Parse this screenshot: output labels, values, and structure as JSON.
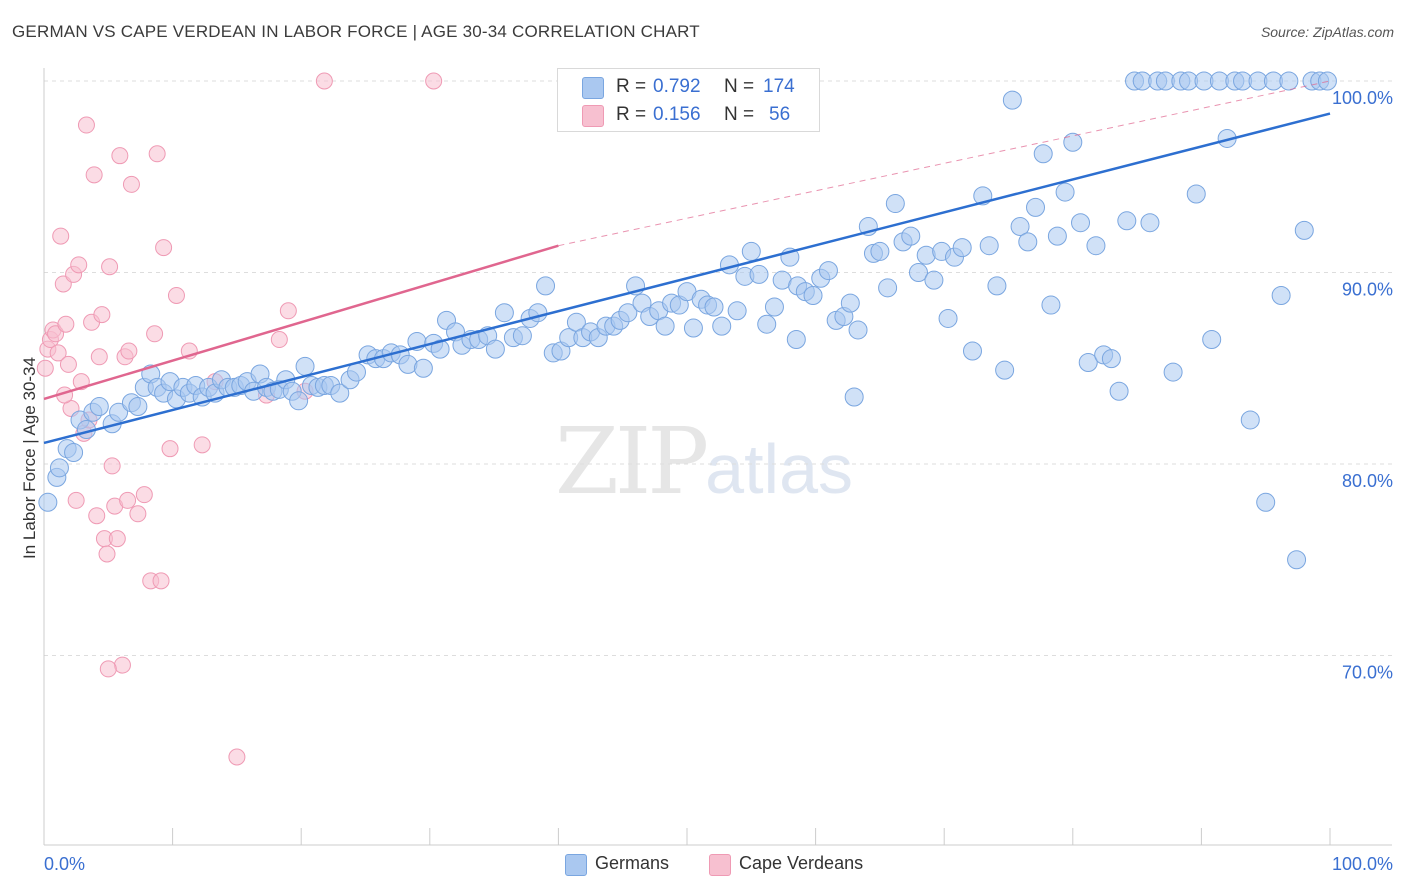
{
  "title": "GERMAN VS CAPE VERDEAN IN LABOR FORCE | AGE 30-34 CORRELATION CHART",
  "source": "Source: ZipAtlas.com",
  "watermark": {
    "zip": "ZIP",
    "atlas": "atlas"
  },
  "legend": {
    "r_label": "R =",
    "n_label": "N =",
    "germans": {
      "r": "0.792",
      "n": "174"
    },
    "cape": {
      "r": "0.156",
      "n": "56"
    }
  },
  "colors": {
    "germans_fill": "#aac8f0",
    "germans_stroke": "#7aa6e0",
    "germans_line": "#2d6fd0",
    "cape_fill": "#f7c0d0",
    "cape_stroke": "#ef9ab4",
    "cape_line": "#e0668f",
    "axis_label": "#3a6fd1",
    "grid": "#dddddd"
  },
  "chart_data": {
    "type": "scatter",
    "title": "GERMAN VS CAPE VERDEAN IN LABOR FORCE | AGE 30-34 CORRELATION CHART",
    "xlabel": "",
    "ylabel": "In Labor Force | Age 30-34",
    "xlim": [
      0,
      100
    ],
    "ylim": [
      60,
      103
    ],
    "x_tick_labels": [
      "0.0%",
      "100.0%"
    ],
    "y_ticks": [
      100,
      90,
      80,
      70
    ],
    "y_tick_labels": [
      "100.0%",
      "90.0%",
      "80.0%",
      "70.0%"
    ],
    "grid": true,
    "legend_position": "top-center",
    "series": [
      {
        "name": "Germans",
        "r": 0.792,
        "n": 174,
        "trend": {
          "x": [
            0,
            100
          ],
          "y": [
            81.1,
            98.3
          ]
        },
        "points": [
          [
            0.3,
            78
          ],
          [
            1.0,
            79.3
          ],
          [
            1.2,
            79.8
          ],
          [
            1.8,
            80.8
          ],
          [
            2.3,
            80.6
          ],
          [
            2.8,
            82.3
          ],
          [
            3.3,
            81.8
          ],
          [
            3.8,
            82.7
          ],
          [
            4.3,
            83.0
          ],
          [
            5.3,
            82.1
          ],
          [
            5.8,
            82.7
          ],
          [
            6.8,
            83.2
          ],
          [
            7.3,
            83.0
          ],
          [
            7.8,
            84.0
          ],
          [
            8.3,
            84.7
          ],
          [
            8.8,
            84.0
          ],
          [
            9.3,
            83.7
          ],
          [
            9.8,
            84.3
          ],
          [
            10.3,
            83.4
          ],
          [
            10.8,
            84.0
          ],
          [
            11.3,
            83.7
          ],
          [
            11.8,
            84.1
          ],
          [
            12.3,
            83.5
          ],
          [
            12.8,
            84.0
          ],
          [
            13.3,
            83.7
          ],
          [
            13.8,
            84.4
          ],
          [
            14.3,
            84.0
          ],
          [
            14.8,
            84.0
          ],
          [
            15.3,
            84.1
          ],
          [
            15.8,
            84.3
          ],
          [
            16.3,
            83.8
          ],
          [
            16.8,
            84.7
          ],
          [
            17.3,
            84.0
          ],
          [
            17.8,
            83.8
          ],
          [
            18.3,
            83.9
          ],
          [
            18.8,
            84.4
          ],
          [
            19.3,
            83.8
          ],
          [
            19.8,
            83.3
          ],
          [
            20.3,
            85.1
          ],
          [
            20.8,
            84.1
          ],
          [
            21.3,
            84.0
          ],
          [
            21.8,
            84.1
          ],
          [
            22.3,
            84.1
          ],
          [
            23.0,
            83.7
          ],
          [
            23.8,
            84.4
          ],
          [
            24.3,
            84.8
          ],
          [
            25.2,
            85.7
          ],
          [
            25.8,
            85.5
          ],
          [
            26.4,
            85.5
          ],
          [
            27.0,
            85.8
          ],
          [
            27.7,
            85.7
          ],
          [
            28.3,
            85.2
          ],
          [
            29.0,
            86.4
          ],
          [
            29.5,
            85.0
          ],
          [
            30.3,
            86.3
          ],
          [
            30.8,
            86.0
          ],
          [
            31.3,
            87.5
          ],
          [
            32.0,
            86.9
          ],
          [
            32.5,
            86.2
          ],
          [
            33.2,
            86.5
          ],
          [
            33.8,
            86.5
          ],
          [
            34.5,
            86.7
          ],
          [
            35.1,
            86.0
          ],
          [
            35.8,
            87.9
          ],
          [
            36.5,
            86.6
          ],
          [
            37.2,
            86.7
          ],
          [
            37.8,
            87.6
          ],
          [
            38.4,
            87.9
          ],
          [
            39.0,
            89.3
          ],
          [
            39.6,
            85.8
          ],
          [
            40.2,
            85.9
          ],
          [
            40.8,
            86.6
          ],
          [
            41.4,
            87.4
          ],
          [
            41.9,
            86.6
          ],
          [
            42.5,
            86.9
          ],
          [
            43.1,
            86.6
          ],
          [
            43.7,
            87.2
          ],
          [
            44.3,
            87.2
          ],
          [
            44.8,
            87.5
          ],
          [
            45.4,
            87.9
          ],
          [
            46.0,
            89.3
          ],
          [
            46.5,
            88.4
          ],
          [
            47.1,
            87.7
          ],
          [
            47.8,
            88.0
          ],
          [
            48.3,
            87.2
          ],
          [
            48.8,
            88.4
          ],
          [
            49.4,
            88.3
          ],
          [
            50.0,
            89.0
          ],
          [
            50.5,
            87.1
          ],
          [
            51.1,
            88.6
          ],
          [
            51.6,
            88.3
          ],
          [
            52.1,
            88.2
          ],
          [
            52.7,
            87.2
          ],
          [
            53.3,
            90.4
          ],
          [
            53.9,
            88.0
          ],
          [
            54.5,
            89.8
          ],
          [
            55.0,
            91.1
          ],
          [
            55.6,
            89.9
          ],
          [
            56.2,
            87.3
          ],
          [
            56.8,
            88.2
          ],
          [
            57.4,
            89.6
          ],
          [
            58.0,
            90.8
          ],
          [
            58.6,
            89.3
          ],
          [
            59.2,
            89.0
          ],
          [
            59.8,
            88.8
          ],
          [
            60.4,
            89.7
          ],
          [
            61.0,
            90.1
          ],
          [
            61.6,
            87.5
          ],
          [
            62.2,
            87.7
          ],
          [
            62.7,
            88.4
          ],
          [
            63.3,
            87.0
          ],
          [
            64.1,
            92.4
          ],
          [
            64.5,
            91.0
          ],
          [
            65.0,
            91.1
          ],
          [
            65.6,
            89.2
          ],
          [
            66.2,
            93.6
          ],
          [
            66.8,
            91.6
          ],
          [
            67.4,
            91.9
          ],
          [
            68.0,
            90.0
          ],
          [
            68.6,
            90.9
          ],
          [
            69.2,
            89.6
          ],
          [
            69.8,
            91.1
          ],
          [
            70.3,
            87.6
          ],
          [
            70.8,
            90.8
          ],
          [
            71.4,
            91.3
          ],
          [
            72.2,
            85.9
          ],
          [
            73.0,
            94.0
          ],
          [
            73.5,
            91.4
          ],
          [
            74.1,
            89.3
          ],
          [
            74.7,
            84.9
          ],
          [
            75.3,
            99.0
          ],
          [
            75.9,
            92.4
          ],
          [
            76.5,
            91.6
          ],
          [
            77.1,
            93.4
          ],
          [
            77.7,
            96.2
          ],
          [
            78.3,
            88.3
          ],
          [
            78.8,
            91.9
          ],
          [
            79.4,
            94.2
          ],
          [
            80.0,
            96.8
          ],
          [
            80.6,
            92.6
          ],
          [
            81.2,
            85.3
          ],
          [
            81.8,
            91.4
          ],
          [
            82.4,
            85.7
          ],
          [
            83.0,
            85.5
          ],
          [
            83.6,
            83.8
          ],
          [
            84.2,
            92.7
          ],
          [
            84.8,
            100
          ],
          [
            85.4,
            100
          ],
          [
            86.0,
            92.6
          ],
          [
            86.6,
            100
          ],
          [
            87.2,
            100
          ],
          [
            87.8,
            84.8
          ],
          [
            88.4,
            100
          ],
          [
            89.0,
            100
          ],
          [
            89.6,
            94.1
          ],
          [
            90.2,
            100
          ],
          [
            90.8,
            86.5
          ],
          [
            91.4,
            100
          ],
          [
            92.0,
            97.0
          ],
          [
            92.6,
            100
          ],
          [
            93.2,
            100
          ],
          [
            93.8,
            82.3
          ],
          [
            94.4,
            100
          ],
          [
            95.0,
            78.0
          ],
          [
            95.6,
            100
          ],
          [
            96.2,
            88.8
          ],
          [
            96.8,
            100
          ],
          [
            97.4,
            75.0
          ],
          [
            98.0,
            92.2
          ],
          [
            98.6,
            100
          ],
          [
            99.2,
            100
          ],
          [
            99.8,
            100
          ],
          [
            63.0,
            83.5
          ],
          [
            58.5,
            86.5
          ]
        ]
      },
      {
        "name": "Cape Verdeans",
        "r": 0.156,
        "n": 56,
        "trend": {
          "x": [
            0,
            40
          ],
          "y": [
            83.4,
            91.4
          ]
        },
        "trend_extension": {
          "x": [
            40,
            100
          ],
          "y": [
            91.4,
            100.0
          ]
        },
        "points": [
          [
            0.1,
            85.0
          ],
          [
            0.3,
            86.0
          ],
          [
            0.5,
            86.5
          ],
          [
            0.7,
            87.0
          ],
          [
            0.9,
            86.8
          ],
          [
            1.1,
            85.8
          ],
          [
            1.3,
            91.9
          ],
          [
            1.5,
            89.4
          ],
          [
            1.7,
            87.3
          ],
          [
            1.9,
            85.2
          ],
          [
            2.1,
            82.9
          ],
          [
            2.3,
            89.9
          ],
          [
            2.5,
            78.1
          ],
          [
            2.7,
            90.4
          ],
          [
            2.9,
            84.3
          ],
          [
            3.1,
            81.6
          ],
          [
            3.3,
            97.7
          ],
          [
            3.5,
            82.3
          ],
          [
            3.7,
            87.4
          ],
          [
            3.9,
            95.1
          ],
          [
            4.1,
            77.3
          ],
          [
            4.3,
            85.6
          ],
          [
            4.5,
            87.8
          ],
          [
            4.7,
            76.1
          ],
          [
            4.9,
            75.3
          ],
          [
            5.1,
            90.3
          ],
          [
            5.3,
            79.9
          ],
          [
            5.5,
            77.8
          ],
          [
            5.7,
            76.1
          ],
          [
            5.9,
            96.1
          ],
          [
            6.1,
            69.5
          ],
          [
            6.3,
            85.6
          ],
          [
            6.6,
            85.9
          ],
          [
            6.8,
            94.6
          ],
          [
            7.3,
            77.4
          ],
          [
            7.8,
            78.4
          ],
          [
            8.3,
            73.9
          ],
          [
            8.6,
            86.8
          ],
          [
            8.8,
            96.2
          ],
          [
            9.1,
            73.9
          ],
          [
            9.3,
            91.3
          ],
          [
            9.8,
            80.8
          ],
          [
            10.3,
            88.8
          ],
          [
            11.3,
            85.9
          ],
          [
            12.3,
            81.0
          ],
          [
            13.3,
            84.3
          ],
          [
            15.0,
            64.7
          ],
          [
            17.3,
            83.6
          ],
          [
            18.3,
            86.5
          ],
          [
            19.0,
            88.0
          ],
          [
            20.3,
            83.8
          ],
          [
            21.8,
            100
          ],
          [
            30.3,
            100
          ],
          [
            6.5,
            78.1
          ],
          [
            5.0,
            69.3
          ],
          [
            1.6,
            83.6
          ]
        ]
      }
    ]
  }
}
